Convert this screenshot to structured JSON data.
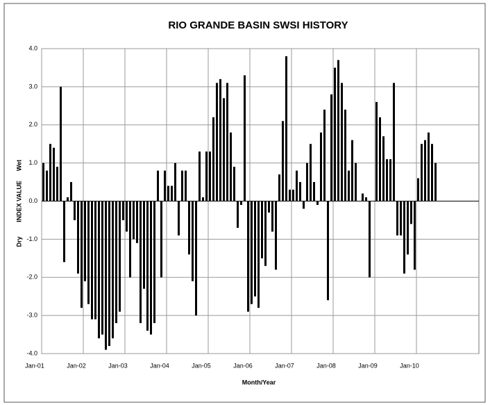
{
  "chart_data": {
    "type": "bar",
    "title": "RIO GRANDE BASIN SWSI HISTORY",
    "xlabel": "Month/Year",
    "ylabel": "INDEX VALUE",
    "annotations": [
      "Dry",
      "Wet"
    ],
    "categories": [
      "Jan-01",
      null,
      null,
      null,
      null,
      null,
      null,
      null,
      null,
      null,
      null,
      null,
      "Jan-02",
      null,
      null,
      null,
      null,
      null,
      null,
      null,
      null,
      null,
      null,
      null,
      "Jan-03",
      null,
      null,
      null,
      null,
      null,
      null,
      null,
      null,
      null,
      null,
      null,
      "Jan-04",
      null,
      null,
      null,
      null,
      null,
      null,
      null,
      null,
      null,
      null,
      null,
      "Jan-05",
      null,
      null,
      null,
      null,
      null,
      null,
      null,
      null,
      null,
      null,
      null,
      "Jan-06",
      null,
      null,
      null,
      null,
      null,
      null,
      null,
      null,
      null,
      null,
      null,
      "Jan-07",
      null,
      null,
      null,
      null,
      null,
      null,
      null,
      null,
      null,
      null,
      null,
      "Jan-08",
      null,
      null,
      null,
      null,
      null,
      null,
      null,
      null,
      null,
      null,
      null,
      "Jan-09",
      null,
      null,
      null,
      null,
      null,
      null,
      null,
      null,
      null,
      null,
      null,
      "Jan-10",
      null,
      null,
      null,
      null,
      null
    ],
    "values": [
      1.0,
      0.8,
      1.5,
      1.4,
      0.9,
      3.0,
      -1.6,
      0.1,
      0.5,
      -0.5,
      -1.9,
      -2.8,
      -2.1,
      -2.7,
      -3.1,
      -3.1,
      -3.6,
      -3.5,
      -3.9,
      -3.8,
      -3.6,
      -3.2,
      -2.9,
      -0.5,
      -0.8,
      -2.0,
      -1.0,
      -1.1,
      -3.2,
      -2.3,
      -3.4,
      -3.5,
      -3.2,
      0.8,
      -2.0,
      0.8,
      0.4,
      0.4,
      1.0,
      -0.9,
      0.8,
      0.8,
      -1.4,
      -2.1,
      -3.0,
      1.3,
      0.1,
      1.3,
      1.3,
      2.2,
      3.1,
      3.2,
      2.7,
      3.1,
      1.8,
      0.9,
      -0.7,
      -0.1,
      3.3,
      -2.9,
      -2.7,
      -2.5,
      -2.8,
      -1.5,
      -1.7,
      -0.3,
      -0.8,
      -1.8,
      0.7,
      2.1,
      3.8,
      0.3,
      0.3,
      0.8,
      0.5,
      -0.2,
      1.0,
      1.5,
      0.5,
      -0.1,
      1.8,
      2.4,
      -2.6,
      2.8,
      3.5,
      3.7,
      3.1,
      2.4,
      0.8,
      1.6,
      1.0,
      0.0,
      0.2,
      0.1,
      -2.0,
      0.0,
      2.6,
      2.2,
      1.7,
      1.1,
      1.1,
      3.1,
      -0.9,
      -0.9,
      -1.9,
      -1.4,
      -0.6,
      -1.8,
      0.6,
      1.5,
      1.6,
      1.8,
      1.5,
      1.0
    ],
    "color": "#000000",
    "ylim": [
      -4,
      4
    ],
    "yticks": [
      {
        "value": -4,
        "label": "-4.0"
      },
      {
        "value": -3,
        "label": "-3.0"
      },
      {
        "value": -2,
        "label": "-2.0"
      },
      {
        "value": -1,
        "label": "-1.0"
      },
      {
        "value": 0,
        "label": "0.0"
      },
      {
        "value": 1,
        "label": "1.0"
      },
      {
        "value": 2,
        "label": "2.0"
      },
      {
        "value": 3,
        "label": "3.0"
      },
      {
        "value": 4,
        "label": "4.0"
      }
    ],
    "grid": true
  }
}
